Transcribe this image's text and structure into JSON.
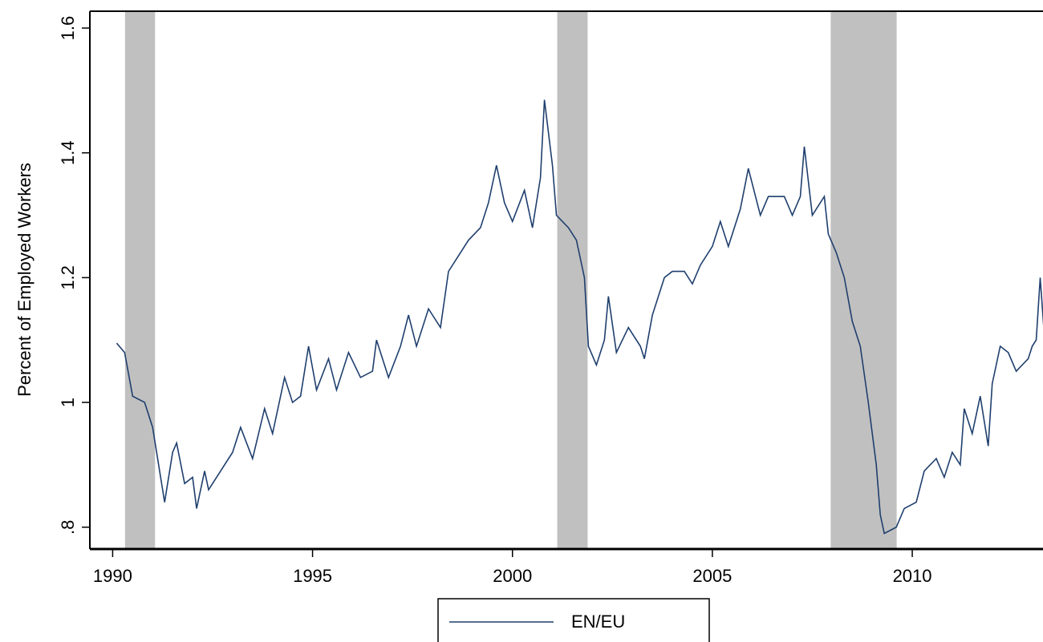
{
  "chart_data": {
    "type": "line",
    "y_label": "Percent of Employed Workers",
    "x": [
      1990.1,
      1990.3,
      1990.5,
      1990.8,
      1991.0,
      1991.2,
      1991.3,
      1991.5,
      1991.6,
      1991.8,
      1992.0,
      1992.1,
      1992.3,
      1992.4,
      1992.7,
      1993.0,
      1993.2,
      1993.5,
      1993.8,
      1994.0,
      1994.3,
      1994.5,
      1994.7,
      1994.9,
      1995.1,
      1995.4,
      1995.6,
      1995.9,
      1996.2,
      1996.5,
      1996.6,
      1996.9,
      1997.2,
      1997.4,
      1997.6,
      1997.9,
      1998.2,
      1998.4,
      1998.6,
      1998.9,
      1999.2,
      1999.4,
      1999.6,
      1999.8,
      2000.0,
      2000.3,
      2000.5,
      2000.7,
      2000.8,
      2001.0,
      2001.1,
      2001.4,
      2001.6,
      2001.8,
      2001.9,
      2002.1,
      2002.3,
      2002.4,
      2002.6,
      2002.9,
      2003.2,
      2003.3,
      2003.5,
      2003.8,
      2004.0,
      2004.3,
      2004.5,
      2004.7,
      2005.0,
      2005.2,
      2005.4,
      2005.7,
      2005.9,
      2006.2,
      2006.4,
      2006.8,
      2007.0,
      2007.2,
      2007.3,
      2007.5,
      2007.8,
      2007.9,
      2008.1,
      2008.3,
      2008.5,
      2008.7,
      2008.9,
      2009.1,
      2009.2,
      2009.3,
      2009.6,
      2009.8,
      2010.1,
      2010.3,
      2010.6,
      2010.8,
      2011.0,
      2011.2,
      2011.3,
      2011.5,
      2011.7,
      2011.9,
      2012.0,
      2012.2,
      2012.4,
      2012.6,
      2012.9,
      2013.0,
      2013.1,
      2013.2,
      2013.3
    ],
    "series": [
      {
        "name": "EN/EU",
        "color": "#1f3f6e",
        "values": [
          1.095,
          1.08,
          1.01,
          1.0,
          0.96,
          0.88,
          0.84,
          0.92,
          0.935,
          0.87,
          0.88,
          0.83,
          0.89,
          0.86,
          0.89,
          0.92,
          0.96,
          0.91,
          0.99,
          0.95,
          1.04,
          1.0,
          1.01,
          1.09,
          1.02,
          1.07,
          1.02,
          1.08,
          1.04,
          1.05,
          1.1,
          1.04,
          1.09,
          1.14,
          1.09,
          1.15,
          1.12,
          1.21,
          1.23,
          1.26,
          1.28,
          1.32,
          1.38,
          1.32,
          1.29,
          1.34,
          1.28,
          1.36,
          1.485,
          1.38,
          1.3,
          1.28,
          1.26,
          1.2,
          1.09,
          1.06,
          1.1,
          1.17,
          1.08,
          1.12,
          1.09,
          1.07,
          1.14,
          1.2,
          1.21,
          1.21,
          1.19,
          1.22,
          1.25,
          1.29,
          1.25,
          1.31,
          1.375,
          1.3,
          1.33,
          1.33,
          1.3,
          1.33,
          1.41,
          1.3,
          1.33,
          1.27,
          1.24,
          1.2,
          1.13,
          1.09,
          1.0,
          0.9,
          0.82,
          0.79,
          0.8,
          0.83,
          0.84,
          0.89,
          0.91,
          0.88,
          0.92,
          0.9,
          0.99,
          0.95,
          1.01,
          0.93,
          1.03,
          1.09,
          1.08,
          1.05,
          1.07,
          1.09,
          1.1,
          1.2,
          1.11
        ]
      }
    ],
    "shaded_regions": [
      [
        1990.31,
        1991.06
      ],
      [
        2001.12,
        2001.88
      ],
      [
        2007.96,
        2009.61
      ]
    ],
    "shade_color": "#c0c0c0",
    "xlim": [
      1989.43,
      2013.27
    ],
    "xticks": [
      1990,
      1995,
      2000,
      2005,
      2010
    ],
    "ylim": [
      0.765,
      1.627
    ],
    "yticks": [
      {
        "value": 0.8,
        "label": ".8"
      },
      1,
      1.2,
      1.4,
      1.6
    ],
    "legend": "bottom"
  }
}
